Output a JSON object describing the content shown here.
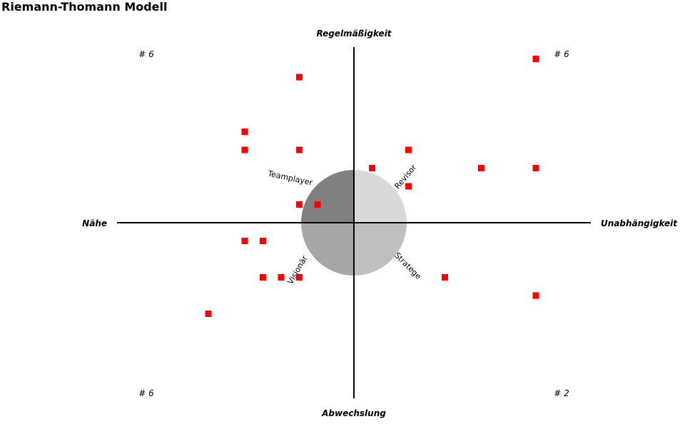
{
  "chart_data": {
    "type": "scatter",
    "title": "Riemann-Thomann Modell",
    "axes": {
      "top": "Regelmäßigkeit",
      "bottom": "Abwechslung",
      "left": "Nähe",
      "right": "Unabhängigkeit"
    },
    "xlim": [
      -13,
      13
    ],
    "ylim": [
      -13,
      13
    ],
    "quadrant_counts": {
      "top_left": "# 6",
      "top_right": "# 6",
      "bottom_left": "# 6",
      "bottom_right": "# 2"
    },
    "sectors": [
      {
        "label": "Teamplayer",
        "quadrant": "top-left",
        "color": "#808080"
      },
      {
        "label": "Revisor",
        "quadrant": "top-right",
        "color": "#d9d9d9"
      },
      {
        "label": "Visionär",
        "quadrant": "bottom-left",
        "color": "#a6a6a6"
      },
      {
        "label": "Stratege",
        "quadrant": "bottom-right",
        "color": "#bfbfbf"
      }
    ],
    "marker_color": "#ff0000",
    "points": [
      {
        "x": -3,
        "y": 8
      },
      {
        "x": -6,
        "y": 5
      },
      {
        "x": -6,
        "y": 4
      },
      {
        "x": -3,
        "y": 4
      },
      {
        "x": -3,
        "y": 1
      },
      {
        "x": -2,
        "y": 1
      },
      {
        "x": -6,
        "y": -1
      },
      {
        "x": -5,
        "y": -1
      },
      {
        "x": -5,
        "y": -3
      },
      {
        "x": -4,
        "y": -3
      },
      {
        "x": -3,
        "y": -3
      },
      {
        "x": -8,
        "y": -5
      },
      {
        "x": 10,
        "y": 9
      },
      {
        "x": 3,
        "y": 4
      },
      {
        "x": 1,
        "y": 3
      },
      {
        "x": 7,
        "y": 3
      },
      {
        "x": 10,
        "y": 3
      },
      {
        "x": 3,
        "y": 2
      },
      {
        "x": 5,
        "y": -3
      },
      {
        "x": 10,
        "y": -4
      }
    ]
  }
}
